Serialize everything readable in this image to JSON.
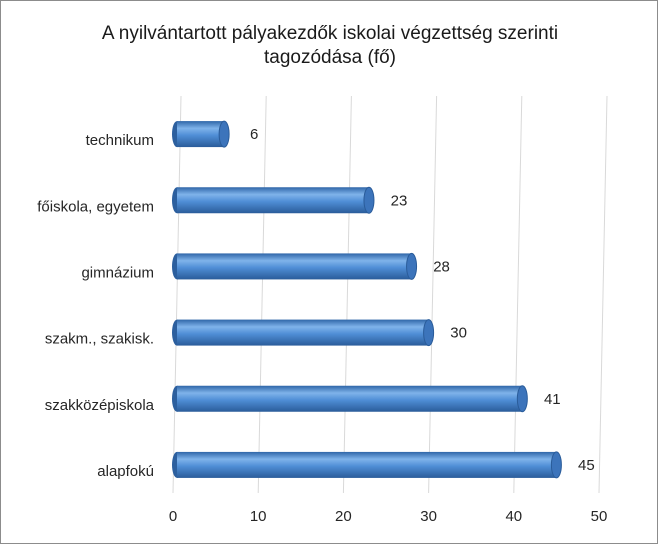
{
  "chart_data": {
    "type": "bar",
    "orientation": "horizontal",
    "style": "3d-cylinder",
    "title": "A nyilvántartott pályakezdők iskolai végzettség szerinti tagozódása (fő)",
    "title_lines": [
      "A nyilvántartott pályakezdők iskolai végzettség szerinti",
      "tagozódása (fő)"
    ],
    "categories": [
      "technikum",
      "főiskola, egyetem",
      "gimnázium",
      "szakm., szakisk.",
      "szakközépiskola",
      "alapfokú"
    ],
    "values": [
      6,
      23,
      28,
      30,
      41,
      45
    ],
    "data_labels": [
      "6",
      "23",
      "28",
      "30",
      "41",
      "45"
    ],
    "xlim": [
      0,
      50
    ],
    "x_ticks": [
      "0",
      "10",
      "20",
      "30",
      "40",
      "50"
    ],
    "grid": true,
    "legend": "none",
    "bar_color": "#4f8ed6",
    "bar_color_dark": "#2c5f9e"
  }
}
